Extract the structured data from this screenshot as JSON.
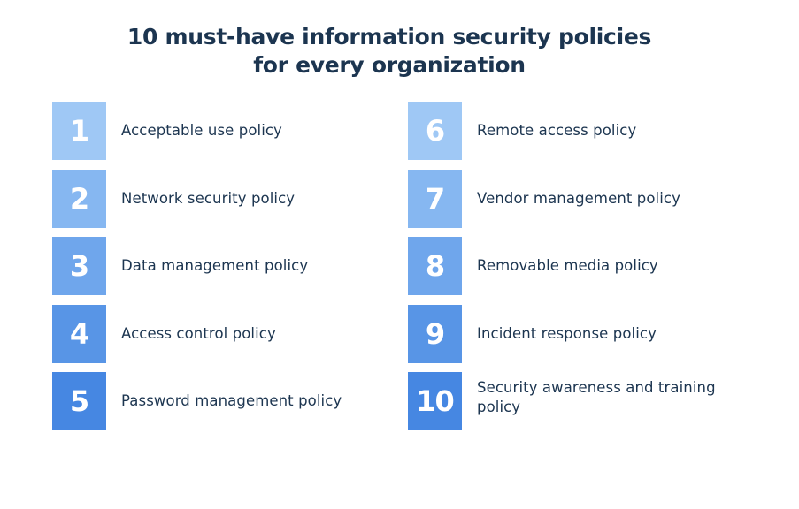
{
  "title": {
    "line1": "10 must-have information security policies",
    "line2": "for every organization"
  },
  "colors": {
    "title_text": "#1c3550",
    "level_1": "#9fc8f5",
    "level_2": "#86b7f1",
    "level_3": "#6fa6ec",
    "level_4": "#5895e6",
    "level_5": "#4687e2"
  },
  "policies": {
    "left": [
      {
        "number": "1",
        "label": "Acceptable use policy",
        "color": "#9fc8f5"
      },
      {
        "number": "2",
        "label": "Network security policy",
        "color": "#86b7f1"
      },
      {
        "number": "3",
        "label": "Data management policy",
        "color": "#6fa6ec"
      },
      {
        "number": "4",
        "label": "Access control policy",
        "color": "#5895e6"
      },
      {
        "number": "5",
        "label": "Password management policy",
        "color": "#4687e2"
      }
    ],
    "right": [
      {
        "number": "6",
        "label": "Remote access policy",
        "color": "#9fc8f5"
      },
      {
        "number": "7",
        "label": "Vendor management policy",
        "color": "#86b7f1"
      },
      {
        "number": "8",
        "label": "Removable media policy",
        "color": "#6fa6ec"
      },
      {
        "number": "9",
        "label": "Incident response policy",
        "color": "#5895e6"
      },
      {
        "number": "10",
        "label": "Security awareness and training policy",
        "color": "#4687e2"
      }
    ]
  }
}
